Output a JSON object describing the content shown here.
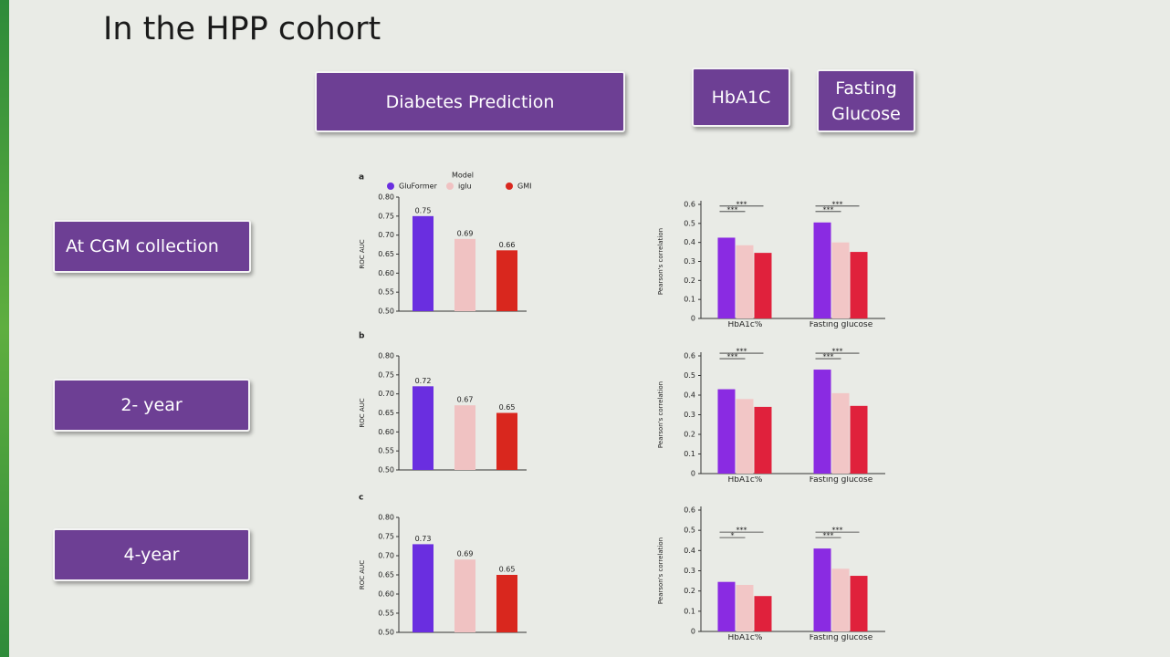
{
  "title": "In the HPP cohort",
  "column_headers": [
    "Diabetes Prediction",
    "HbA1C",
    "Fasting Glucose"
  ],
  "row_labels": [
    "At CGM collection",
    "2- year",
    "4-year"
  ],
  "chart_data": [
    {
      "type": "bar",
      "panel_label": "a",
      "legend_title": "Model",
      "y_label": "ROC AUC",
      "ylim": [
        0.5,
        0.8
      ],
      "yticks": [
        {
          "value": 0.5,
          "label": "0.50"
        },
        {
          "value": 0.55,
          "label": "0.55"
        },
        {
          "value": 0.6,
          "label": "0.60"
        },
        {
          "value": 0.65,
          "label": "0.65"
        },
        {
          "value": 0.7,
          "label": "0.70"
        },
        {
          "value": 0.75,
          "label": "0.75"
        },
        {
          "value": 0.8,
          "label": "0.80"
        }
      ],
      "series": [
        {
          "name": "GluFormer",
          "color": "#6a2ee0",
          "values": [
            0.75
          ]
        },
        {
          "name": "iglu",
          "color": "#f0c2c2",
          "values": [
            0.69
          ]
        },
        {
          "name": "GMI",
          "color": "#d9271e",
          "values": [
            0.66
          ]
        }
      ]
    },
    {
      "type": "bar",
      "panel_label": "b",
      "y_label": "ROC AUC",
      "ylim": [
        0.5,
        0.8
      ],
      "yticks": [
        {
          "value": 0.5,
          "label": "0.50"
        },
        {
          "value": 0.55,
          "label": "0.55"
        },
        {
          "value": 0.6,
          "label": "0.60"
        },
        {
          "value": 0.65,
          "label": "0.65"
        },
        {
          "value": 0.7,
          "label": "0.70"
        },
        {
          "value": 0.75,
          "label": "0.75"
        },
        {
          "value": 0.8,
          "label": "0.80"
        }
      ],
      "series": [
        {
          "color": "#6a2ee0",
          "values": [
            0.72
          ]
        },
        {
          "color": "#f0c2c2",
          "values": [
            0.67
          ]
        },
        {
          "color": "#d9271e",
          "values": [
            0.65
          ]
        }
      ]
    },
    {
      "type": "bar",
      "panel_label": "c",
      "y_label": "ROC AUC",
      "ylim": [
        0.5,
        0.8
      ],
      "yticks": [
        {
          "value": 0.5,
          "label": "0.50"
        },
        {
          "value": 0.55,
          "label": "0.55"
        },
        {
          "value": 0.6,
          "label": "0.60"
        },
        {
          "value": 0.65,
          "label": "0.65"
        },
        {
          "value": 0.7,
          "label": "0.70"
        },
        {
          "value": 0.75,
          "label": "0.75"
        },
        {
          "value": 0.8,
          "label": "0.80"
        }
      ],
      "series": [
        {
          "color": "#6a2ee0",
          "values": [
            0.73
          ]
        },
        {
          "color": "#f0c2c2",
          "values": [
            0.69
          ]
        },
        {
          "color": "#d9271e",
          "values": [
            0.65
          ]
        }
      ]
    },
    {
      "type": "grouped_bar",
      "y_label": "Pearson's correlation",
      "categories": [
        "HbA1c%",
        "Fasting glucose"
      ],
      "ylim": [
        0,
        0.6
      ],
      "yticks": [
        0,
        0.1,
        0.2,
        0.3,
        0.4,
        0.5,
        0.6
      ],
      "series": [
        {
          "color": "#8a2be2",
          "values": [
            0.425,
            0.505
          ]
        },
        {
          "color": "#f2c6c6",
          "values": [
            0.385,
            0.4
          ]
        },
        {
          "color": "#e0213c",
          "values": [
            0.345,
            0.35
          ]
        }
      ],
      "annotations": [
        [
          "***",
          "***"
        ],
        [
          "***",
          "***"
        ]
      ]
    },
    {
      "type": "grouped_bar",
      "y_label": "Pearson's correlation",
      "categories": [
        "HbA1c%",
        "Fasting glucose"
      ],
      "ylim": [
        0,
        0.6
      ],
      "yticks": [
        0,
        0.1,
        0.2,
        0.3,
        0.4,
        0.5,
        0.6
      ],
      "series": [
        {
          "color": "#8a2be2",
          "values": [
            0.43,
            0.53
          ]
        },
        {
          "color": "#f2c6c6",
          "values": [
            0.38,
            0.41
          ]
        },
        {
          "color": "#e0213c",
          "values": [
            0.34,
            0.345
          ]
        }
      ],
      "annotations": [
        [
          "***",
          "***"
        ],
        [
          "***",
          "***"
        ]
      ]
    },
    {
      "type": "grouped_bar",
      "y_label": "Pearson's correlation",
      "categories": [
        "HbA1c%",
        "Fasting glucose"
      ],
      "ylim": [
        0,
        0.6
      ],
      "yticks": [
        0,
        0.1,
        0.2,
        0.3,
        0.4,
        0.5,
        0.6
      ],
      "series": [
        {
          "color": "#8a2be2",
          "values": [
            0.245,
            0.41
          ]
        },
        {
          "color": "#f2c6c6",
          "values": [
            0.23,
            0.31
          ]
        },
        {
          "color": "#e0213c",
          "values": [
            0.175,
            0.275
          ]
        }
      ],
      "annotations": [
        [
          "*",
          "***"
        ],
        [
          "***",
          "***"
        ]
      ]
    }
  ]
}
